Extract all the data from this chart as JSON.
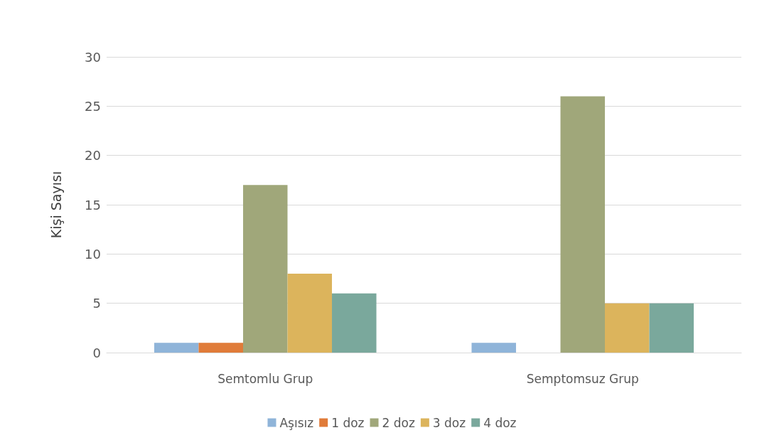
{
  "chart_data": {
    "type": "bar",
    "ylabel": "Kişi Sayısı",
    "categories": [
      "Semtomlu Grup",
      "Semptomsuz Grup"
    ],
    "series": [
      {
        "name": "Aşısız",
        "color": "#8fb4d9",
        "values": [
          1,
          1
        ]
      },
      {
        "name": "1 doz",
        "color": "#e07b39",
        "values": [
          1,
          0
        ]
      },
      {
        "name": "2 doz",
        "color": "#a0a77a",
        "values": [
          17,
          26
        ]
      },
      {
        "name": "3 doz",
        "color": "#dcb45c",
        "values": [
          8,
          5
        ]
      },
      {
        "name": "4 doz",
        "color": "#7aa89c",
        "values": [
          6,
          5
        ]
      }
    ],
    "ylim": [
      0,
      30
    ],
    "yticks": [
      0,
      5,
      10,
      15,
      20,
      25,
      30
    ],
    "grid": "y",
    "legend": "bottom"
  }
}
